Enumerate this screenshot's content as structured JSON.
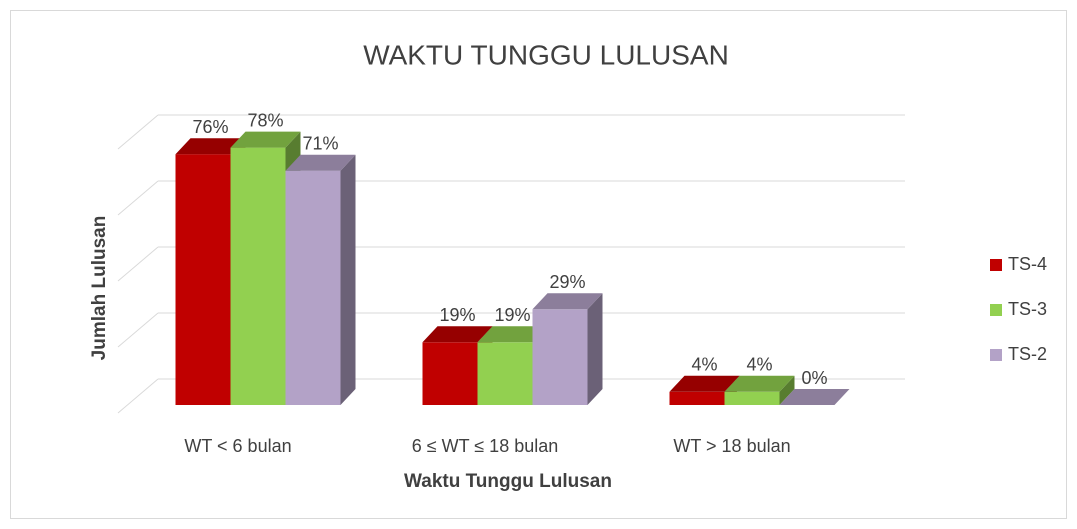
{
  "chart_data": {
    "type": "bar3d",
    "title": "WAKTU TUNGGU LULUSAN",
    "x_label": "Waktu Tunggu Lulusan",
    "y_label": "Jumlah Lulusan",
    "categories": [
      "WT < 6 bulan",
      "6 ≤ WT ≤ 18 bulan",
      "WT > 18 bulan"
    ],
    "series": [
      {
        "name": "TS-4",
        "color": "#c00000",
        "values": [
          76,
          19,
          4
        ],
        "value_labels": [
          "76%",
          "19%",
          "4%"
        ]
      },
      {
        "name": "TS-3",
        "color": "#92d050",
        "values": [
          78,
          19,
          4
        ],
        "value_labels": [
          "78%",
          "19%",
          "4%"
        ]
      },
      {
        "name": "TS-2",
        "color": "#b3a2c7",
        "values": [
          71,
          29,
          0
        ],
        "value_labels": [
          "71%",
          "29%",
          "0%"
        ]
      }
    ],
    "ylim": [
      0,
      80
    ],
    "yticks": [
      0,
      20,
      40,
      60,
      80
    ],
    "grid": true,
    "legend": "right"
  }
}
